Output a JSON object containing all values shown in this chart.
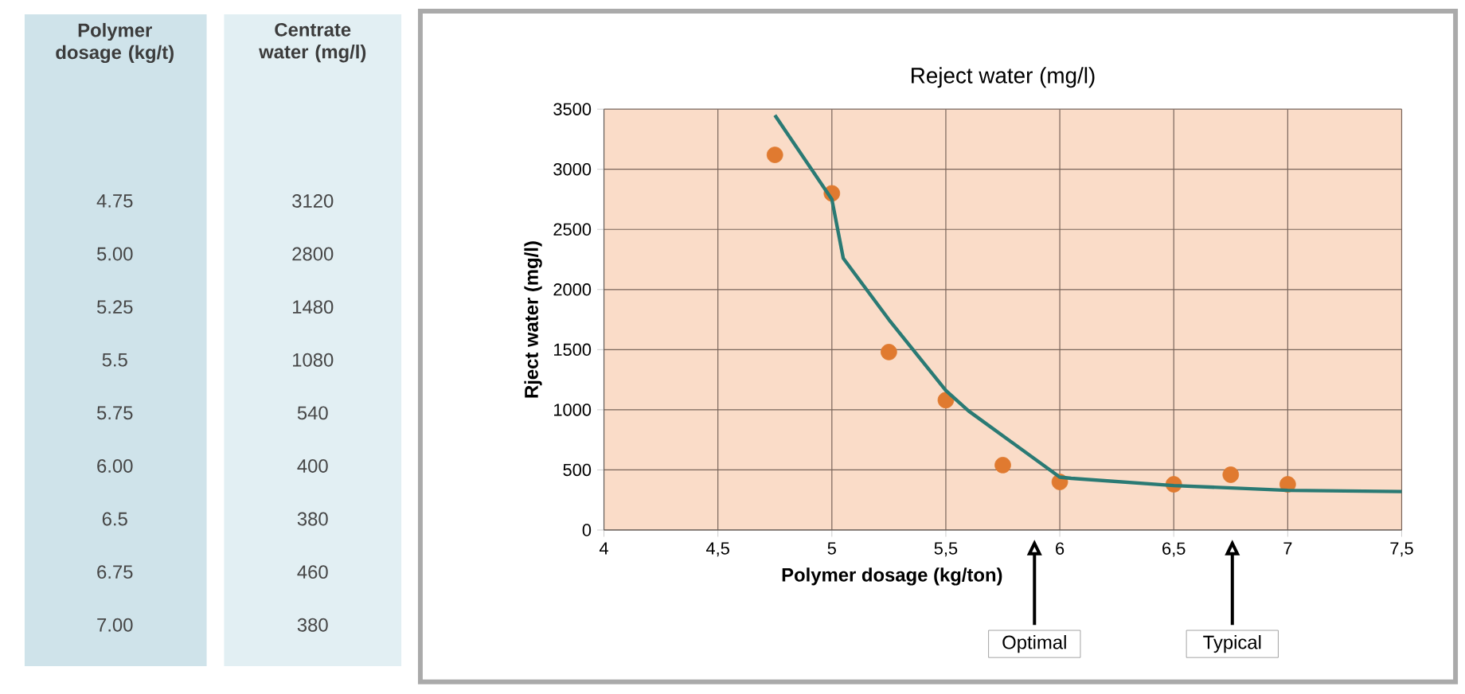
{
  "chart_data": {
    "type": "scatter",
    "title": "Reject water (mg/l)",
    "xlabel": "Polymer dosage (kg/ton)",
    "ylabel": "Rject water (mg/l)",
    "xlim": [
      4,
      7.5
    ],
    "ylim": [
      0,
      3500
    ],
    "xticks": [
      4,
      {
        "value": 4.5,
        "label": "4,5"
      },
      5,
      {
        "value": 5.5,
        "label": "5,5"
      },
      6,
      {
        "value": 6.5,
        "label": "6,5"
      },
      7,
      {
        "value": 7.5,
        "label": "7,5"
      }
    ],
    "yticks": [
      0,
      500,
      1000,
      1500,
      2000,
      2500,
      3000,
      3500
    ],
    "grid": true,
    "series": [
      {
        "marker": "circle",
        "color": "#e07a30",
        "x": [
          4.75,
          5.0,
          5.25,
          5.5,
          5.75,
          6.0,
          6.5,
          6.75,
          7.0
        ],
        "values": [
          3120,
          2800,
          1480,
          1080,
          540,
          400,
          380,
          460,
          380
        ]
      },
      {
        "type": "line",
        "marker": "none",
        "line_style": "solid",
        "color": "#2a7a74",
        "x": [
          4.75,
          5.0,
          5.05,
          5.25,
          5.5,
          5.6,
          6.0,
          6.05,
          6.5,
          7.0,
          7.5
        ],
        "values": [
          3450,
          2750,
          2260,
          1750,
          1160,
          990,
          440,
          430,
          370,
          330,
          320
        ]
      }
    ],
    "annotations": [
      "Polymer dosage (kg/t)",
      "Centrate water (mg/l)",
      "4.75",
      "5.00",
      "5.25",
      "5.5",
      "5.75",
      "6.00",
      "6.5",
      "6.75",
      "7.00",
      "3120",
      "2800",
      "1480",
      "1080",
      "540",
      "400",
      "380",
      "460",
      "380",
      "Optimal",
      "Typical"
    ]
  }
}
